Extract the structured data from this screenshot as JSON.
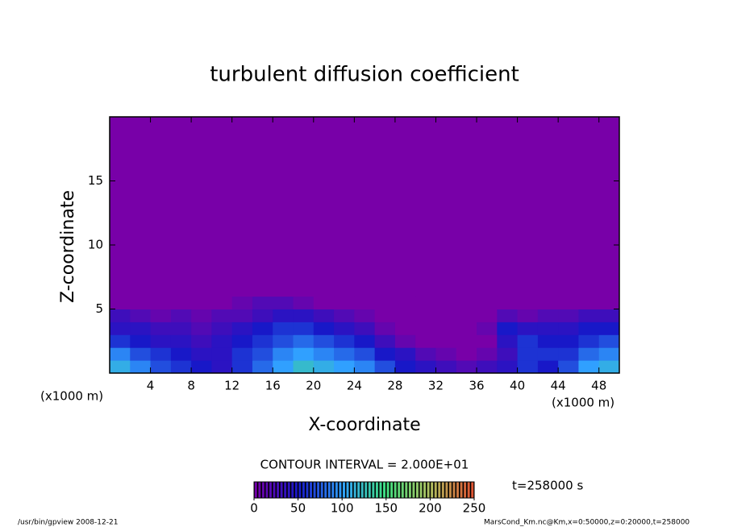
{
  "chart_data": {
    "type": "heatmap",
    "title": "turbulent diffusion coefficient",
    "x_label": "X-coordinate",
    "y_label": "Z-coordinate",
    "x_unit": "(x1000 m)",
    "y_unit": "(x1000 m)",
    "x_edges": [
      0,
      2,
      4,
      6,
      8,
      10,
      12,
      14,
      16,
      18,
      20,
      22,
      24,
      26,
      28,
      30,
      32,
      34,
      36,
      38,
      40,
      42,
      44,
      46,
      48,
      50
    ],
    "y_edges": [
      0,
      1,
      2,
      3,
      4,
      5,
      6,
      20
    ],
    "values": [
      [
        110,
        90,
        70,
        60,
        50,
        40,
        60,
        80,
        100,
        120,
        110,
        100,
        90,
        70,
        50,
        40,
        30,
        20,
        30,
        40,
        60,
        50,
        70,
        100,
        110
      ],
      [
        90,
        70,
        60,
        50,
        40,
        40,
        60,
        70,
        90,
        100,
        90,
        80,
        70,
        50,
        40,
        20,
        10,
        0,
        10,
        30,
        60,
        60,
        60,
        80,
        90
      ],
      [
        60,
        50,
        40,
        40,
        30,
        40,
        50,
        60,
        70,
        80,
        70,
        60,
        50,
        30,
        10,
        0,
        0,
        0,
        0,
        40,
        60,
        50,
        50,
        60,
        70
      ],
      [
        40,
        40,
        30,
        30,
        20,
        30,
        40,
        50,
        60,
        60,
        50,
        40,
        30,
        10,
        0,
        0,
        0,
        0,
        10,
        50,
        40,
        40,
        40,
        50,
        50
      ],
      [
        30,
        20,
        10,
        20,
        10,
        20,
        20,
        30,
        40,
        40,
        30,
        20,
        10,
        0,
        0,
        0,
        0,
        0,
        0,
        20,
        10,
        20,
        20,
        30,
        30
      ],
      [
        0,
        0,
        0,
        0,
        0,
        0,
        10,
        20,
        20,
        10,
        0,
        0,
        0,
        0,
        0,
        0,
        0,
        0,
        0,
        0,
        0,
        0,
        0,
        0,
        0
      ],
      [
        0,
        0,
        0,
        0,
        0,
        0,
        0,
        0,
        0,
        0,
        0,
        0,
        0,
        0,
        0,
        0,
        0,
        0,
        0,
        0,
        0,
        0,
        0,
        0,
        0
      ]
    ],
    "xlim": [
      0,
      50
    ],
    "ylim": [
      0,
      20
    ],
    "xticks": [
      4,
      8,
      12,
      16,
      20,
      24,
      28,
      32,
      36,
      40,
      44,
      48
    ],
    "yticks": [
      5,
      10,
      15
    ],
    "colorbar": {
      "lim": [
        0,
        250
      ],
      "ticks": [
        0,
        50,
        100,
        150,
        200,
        250
      ],
      "colors": [
        "#7800a8",
        "#1818c8",
        "#30a0ff",
        "#40e080",
        "#b0c060",
        "#e05030"
      ]
    },
    "contour_interval": "CONTOUR INTERVAL = 2.000E+01",
    "time_label": "t=258000 s"
  },
  "footer": {
    "left": "/usr/bin/gpview   2008-12-21",
    "right": "MarsCond_Km.nc@Km,x=0:50000,z=0:20000,t=258000"
  }
}
